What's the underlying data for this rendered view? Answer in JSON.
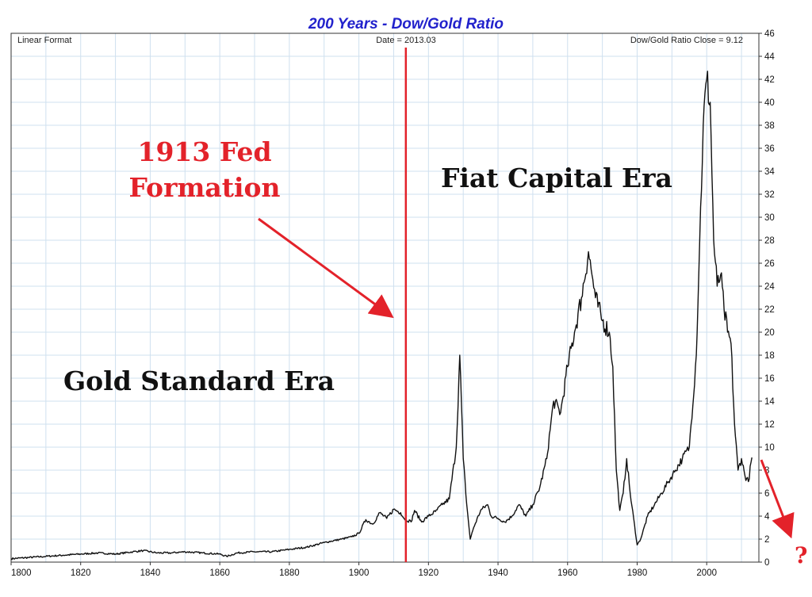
{
  "colors": {
    "title": "#2222cc",
    "grid": "#cfe0ef",
    "line": "#111111",
    "accent": "#e3222a"
  },
  "chart_data": {
    "type": "line",
    "title": "200 Years - Dow/Gold Ratio",
    "format_label": "Linear Format",
    "date_readout": "Date = 2013.03",
    "close_readout": "Dow/Gold Ratio Close = 9.12",
    "xlim": [
      1800,
      2015
    ],
    "ylim": [
      0,
      46
    ],
    "x_ticks": [
      "1800",
      "1820",
      "1840",
      "1860",
      "1880",
      "1900",
      "1920",
      "1940",
      "1960",
      "1980",
      "2000"
    ],
    "y_ticks": [
      "0",
      "2",
      "4",
      "6",
      "8",
      "10",
      "12",
      "14",
      "16",
      "18",
      "20",
      "22",
      "24",
      "26",
      "28",
      "30",
      "32",
      "34",
      "36",
      "38",
      "40",
      "42",
      "44",
      "46"
    ],
    "series": [
      {
        "name": "Dow/Gold Ratio",
        "x": [
          1800,
          1805,
          1810,
          1815,
          1820,
          1825,
          1830,
          1835,
          1838,
          1842,
          1846,
          1850,
          1855,
          1860,
          1862,
          1865,
          1870,
          1875,
          1880,
          1885,
          1890,
          1895,
          1898,
          1900,
          1902,
          1904,
          1906,
          1908,
          1910,
          1912,
          1913,
          1915,
          1916,
          1918,
          1920,
          1922,
          1924,
          1926,
          1928,
          1929,
          1930,
          1931,
          1932,
          1933,
          1935,
          1937,
          1938,
          1940,
          1942,
          1944,
          1946,
          1948,
          1950,
          1952,
          1954,
          1956,
          1958,
          1960,
          1962,
          1964,
          1966,
          1967,
          1968,
          1970,
          1972,
          1973,
          1974,
          1975,
          1976,
          1977,
          1978,
          1980,
          1981,
          1983,
          1985,
          1987,
          1989,
          1991,
          1993,
          1995,
          1997,
          1998,
          1999,
          2000,
          2001,
          2002,
          2003,
          2004,
          2005,
          2006,
          2007,
          2008,
          2009,
          2010,
          2011,
          2012,
          2013
        ],
        "values": [
          0.3,
          0.4,
          0.5,
          0.6,
          0.7,
          0.8,
          0.7,
          0.9,
          1.0,
          0.8,
          0.8,
          0.9,
          0.8,
          0.7,
          0.5,
          0.8,
          0.9,
          0.9,
          1.1,
          1.3,
          1.7,
          2.0,
          2.2,
          2.5,
          3.7,
          3.3,
          4.3,
          3.8,
          4.6,
          4.3,
          3.8,
          3.5,
          4.5,
          3.5,
          4.0,
          4.4,
          5.0,
          5.5,
          10.0,
          18.0,
          9.0,
          5.0,
          2.0,
          3.0,
          4.5,
          5.0,
          4.0,
          3.8,
          3.5,
          4.0,
          5.0,
          4.0,
          5.0,
          6.5,
          9.0,
          14.0,
          13.0,
          17.0,
          20.0,
          23.0,
          27.0,
          25.0,
          23.0,
          21.0,
          20.0,
          17.0,
          8.0,
          4.5,
          6.0,
          9.0,
          6.0,
          1.5,
          2.0,
          4.0,
          5.0,
          6.0,
          7.0,
          8.0,
          9.0,
          10.0,
          18.0,
          28.0,
          38.0,
          42.0,
          40.0,
          28.0,
          24.0,
          25.0,
          22.0,
          20.0,
          19.0,
          12.0,
          8.0,
          9.0,
          7.5,
          7.0,
          9.1
        ]
      }
    ],
    "annotations": {
      "fed_label_line1": "1913 Fed",
      "fed_label_line2": "Formation",
      "fiat_era": "Fiat Capital Era",
      "gold_era": "Gold Standard Era",
      "question": "?",
      "fed_marker_year": 1913.5
    }
  }
}
